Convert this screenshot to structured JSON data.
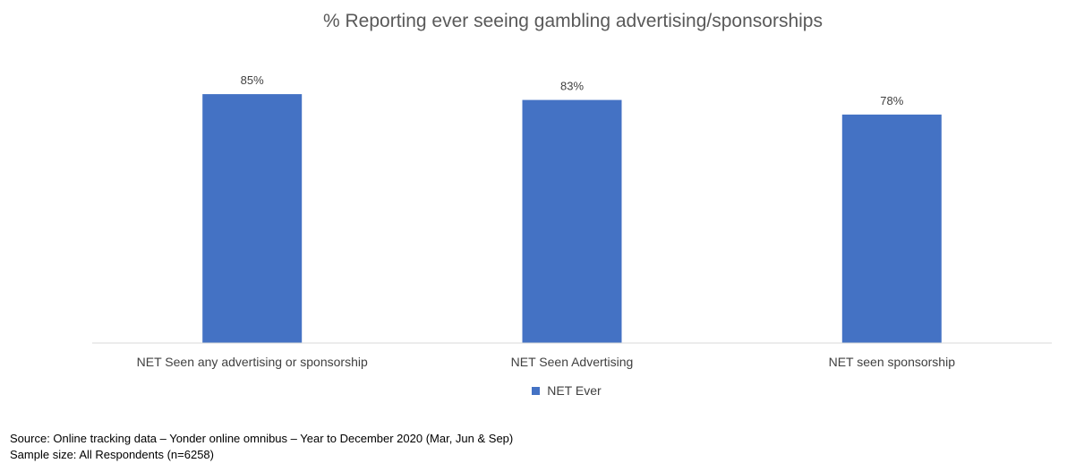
{
  "chart_data": {
    "type": "bar",
    "title": "% Reporting ever seeing gambling advertising/sponsorships",
    "categories": [
      "NET Seen any advertising or sponsorship",
      "NET Seen Advertising",
      "NET seen sponsorship"
    ],
    "series": [
      {
        "name": "NET Ever",
        "values": [
          85,
          83,
          78
        ],
        "labels": [
          "85%",
          "83%",
          "78%"
        ],
        "color": "#4472C4"
      }
    ],
    "ylim": [
      0,
      100
    ],
    "grid": false,
    "legend": "bottom"
  },
  "footnotes": {
    "source": "Source: Online tracking data – Yonder online omnibus – Year to December 2020  (Mar, Jun & Sep)",
    "sample": "Sample size:  All Respondents (n=6258)"
  },
  "colors": {
    "bar": "#4472C4",
    "axis": "#d9d9d9",
    "text": "#404040"
  }
}
